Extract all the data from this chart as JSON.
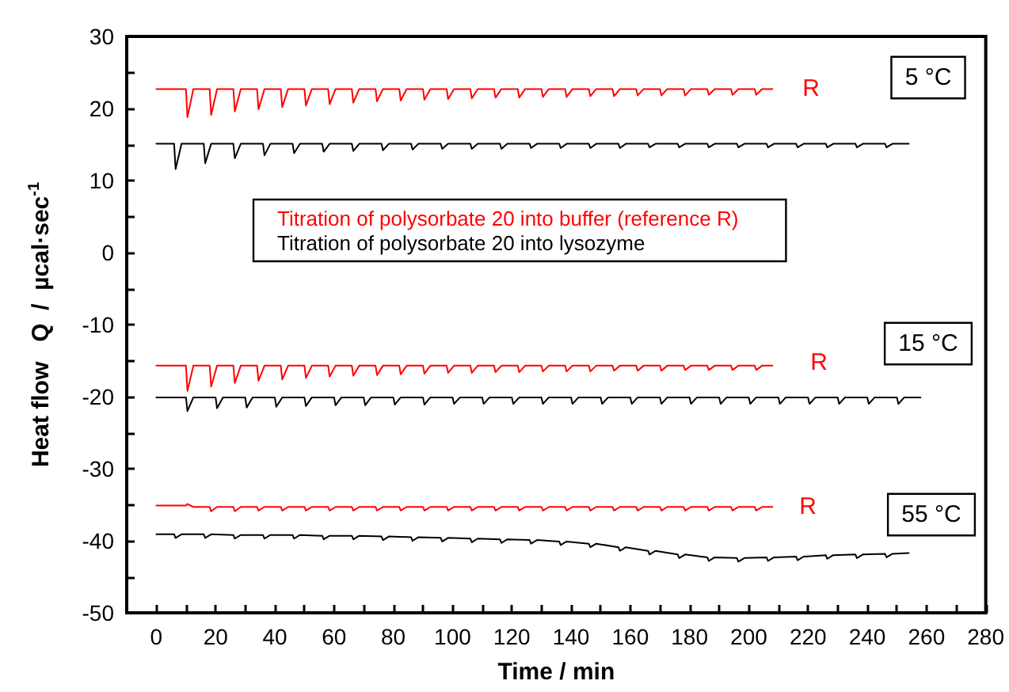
{
  "chart_data": {
    "type": "line",
    "xlabel": "Time / min",
    "ylabel": "Heat flow   Q  /  µcal·sec$^{-1}$",
    "xlim": [
      -10,
      280
    ],
    "ylim": [
      -50,
      30
    ],
    "xticks": [
      0,
      {
        "value": 10,
        "label": null
      },
      20,
      {
        "value": 30,
        "label": null
      },
      40,
      {
        "value": 50,
        "label": null
      },
      60,
      {
        "value": 70,
        "label": null
      },
      80,
      {
        "value": 90,
        "label": null
      },
      100,
      {
        "value": 110,
        "label": null
      },
      120,
      {
        "value": 130,
        "label": null
      },
      140,
      {
        "value": 150,
        "label": null
      },
      160,
      {
        "value": 170,
        "label": null
      },
      180,
      {
        "value": 190,
        "label": null
      },
      200,
      {
        "value": 210,
        "label": null
      },
      220,
      {
        "value": 230,
        "label": null
      },
      240,
      {
        "value": 250,
        "label": null
      },
      260,
      {
        "value": 270,
        "label": null
      },
      280
    ],
    "yticks": [
      -50,
      {
        "value": -45,
        "label": null
      },
      -40,
      {
        "value": -35,
        "label": null
      },
      -30,
      {
        "value": -25,
        "label": null
      },
      -20,
      {
        "value": -15,
        "label": null
      },
      -10,
      {
        "value": -5,
        "label": null
      },
      0,
      {
        "value": 5,
        "label": null
      },
      10,
      {
        "value": 15,
        "label": null
      },
      20,
      {
        "value": 25,
        "label": null
      },
      30
    ],
    "grid": false,
    "legend": "top",
    "marker": "none",
    "line_style": "solid",
    "series": [
      {
        "name": "Titration of polysorbate 20 into buffer (reference R)",
        "color": "#ff0000",
        "x": [
          0,
          10,
          10.5,
          12.5,
          18,
          18.5,
          20.5,
          26,
          26.5,
          28.5,
          34,
          34.5,
          36.5,
          42,
          42.5,
          44.5,
          50,
          50.5,
          52.5,
          58,
          58.5,
          60.5,
          66,
          66.5,
          68.5,
          74,
          74.5,
          76.5,
          82,
          82.5,
          84.5,
          90,
          90.5,
          92.5,
          98,
          98.5,
          100.5,
          106,
          106.5,
          108.5,
          114,
          114.5,
          116.5,
          122,
          122.5,
          124.5,
          130,
          130.5,
          132.5,
          138,
          138.5,
          140.5,
          146,
          146.5,
          148.5,
          154,
          154.5,
          156.5,
          162,
          162.5,
          164.5,
          170,
          170.5,
          172.5,
          178,
          178.5,
          180.5,
          186,
          186.5,
          188.5,
          194,
          194.5,
          196.5,
          202,
          202.5,
          204.5,
          208,
          null,
          0,
          10,
          10.5,
          12.5,
          18,
          18.5,
          20.5,
          26,
          26.5,
          28.5,
          34,
          34.5,
          36.5,
          42,
          42.5,
          44.5,
          50,
          50.5,
          52.5,
          58,
          58.5,
          60.5,
          66,
          66.5,
          68.5,
          74,
          74.5,
          76.5,
          82,
          82.5,
          84.5,
          90,
          90.5,
          92.5,
          98,
          98.5,
          100.5,
          106,
          106.5,
          108.5,
          114,
          114.5,
          116.5,
          122,
          122.5,
          124.5,
          130,
          130.5,
          132.5,
          138,
          138.5,
          140.5,
          146,
          146.5,
          148.5,
          154,
          154.5,
          156.5,
          162,
          162.5,
          164.5,
          170,
          170.5,
          172.5,
          178,
          178.5,
          180.5,
          186,
          186.5,
          188.5,
          194,
          194.5,
          196.5,
          202,
          202.5,
          204.5,
          208,
          null,
          0,
          10,
          10.5,
          12.5,
          18,
          18.5,
          20.5,
          26,
          26.5,
          28.5,
          34,
          34.5,
          36.5,
          42,
          42.5,
          44.5,
          50,
          50.5,
          52.5,
          58,
          58.5,
          60.5,
          66,
          66.5,
          68.5,
          74,
          74.5,
          76.5,
          82,
          82.5,
          84.5,
          90,
          90.5,
          92.5,
          98,
          98.5,
          100.5,
          106,
          106.5,
          108.5,
          114,
          114.5,
          116.5,
          122,
          122.5,
          124.5,
          130,
          130.5,
          132.5,
          138,
          138.5,
          140.5,
          146,
          146.5,
          148.5,
          154,
          154.5,
          156.5,
          162,
          162.5,
          164.5,
          170,
          170.5,
          172.5,
          178,
          178.5,
          180.5,
          186,
          186.5,
          188.5,
          194,
          194.5,
          196.5,
          202,
          202.5,
          204.5,
          208
        ],
        "values": [
          22.7,
          22.7,
          18.8,
          22.7,
          22.7,
          19.1,
          22.7,
          22.7,
          19.6,
          22.7,
          22.7,
          19.9,
          22.7,
          22.7,
          20.2,
          22.7,
          22.7,
          20.4,
          22.7,
          22.7,
          20.6,
          22.7,
          22.7,
          20.8,
          22.7,
          22.7,
          21.0,
          22.7,
          22.7,
          21.1,
          22.7,
          22.7,
          21.2,
          22.7,
          22.7,
          21.3,
          22.7,
          22.7,
          21.4,
          22.7,
          22.7,
          21.5,
          22.7,
          22.7,
          21.5,
          22.7,
          22.7,
          21.6,
          22.7,
          22.7,
          21.6,
          22.7,
          22.7,
          21.7,
          22.7,
          22.7,
          21.7,
          22.7,
          22.7,
          21.8,
          22.7,
          22.7,
          21.8,
          22.7,
          22.7,
          21.8,
          22.7,
          22.7,
          21.9,
          22.7,
          22.7,
          21.9,
          22.7,
          22.7,
          21.9,
          22.7,
          22.7,
          null,
          -15.7,
          -15.7,
          -19.2,
          -15.7,
          -15.7,
          -18.6,
          -15.7,
          -15.7,
          -18.1,
          -15.7,
          -15.7,
          -17.8,
          -15.7,
          -15.7,
          -17.6,
          -15.7,
          -15.7,
          -17.4,
          -15.7,
          -15.7,
          -17.2,
          -15.7,
          -15.7,
          -17.1,
          -15.7,
          -15.7,
          -17.0,
          -15.7,
          -15.7,
          -16.9,
          -15.7,
          -15.7,
          -16.8,
          -15.7,
          -15.7,
          -16.7,
          -15.7,
          -15.7,
          -16.7,
          -15.7,
          -15.7,
          -16.6,
          -15.7,
          -15.7,
          -16.6,
          -15.7,
          -15.7,
          -16.5,
          -15.7,
          -15.7,
          -16.5,
          -15.7,
          -15.7,
          -16.5,
          -15.7,
          -15.7,
          -16.4,
          -15.7,
          -15.7,
          -16.4,
          -15.7,
          -15.7,
          -16.4,
          -15.7,
          -15.7,
          -16.3,
          -15.7,
          -15.7,
          -16.3,
          -15.7,
          -15.7,
          -16.3,
          -15.7,
          -15.7,
          -16.3,
          -15.7,
          -15.7,
          null,
          -35.1,
          -35.1,
          -34.9,
          -35.3,
          -35.3,
          -35.9,
          -35.3,
          -35.3,
          -35.9,
          -35.3,
          -35.3,
          -35.8,
          -35.3,
          -35.3,
          -35.8,
          -35.3,
          -35.3,
          -35.8,
          -35.3,
          -35.3,
          -35.8,
          -35.3,
          -35.3,
          -35.8,
          -35.3,
          -35.3,
          -35.8,
          -35.3,
          -35.3,
          -35.8,
          -35.3,
          -35.3,
          -35.8,
          -35.3,
          -35.3,
          -35.8,
          -35.3,
          -35.3,
          -35.8,
          -35.3,
          -35.3,
          -35.8,
          -35.3,
          -35.3,
          -35.8,
          -35.3,
          -35.3,
          -35.8,
          -35.3,
          -35.3,
          -35.8,
          -35.3,
          -35.3,
          -35.8,
          -35.3,
          -35.3,
          -35.8,
          -35.3,
          -35.3,
          -35.8,
          -35.3,
          -35.3,
          -35.8,
          -35.3,
          -35.3,
          -35.8,
          -35.3,
          -35.3,
          -35.8,
          -35.3,
          -35.3,
          -35.8,
          -35.3,
          -35.3,
          -35.8,
          -35.3,
          -35.3
        ]
      },
      {
        "name": "Titration of polysorbate 20 into lysozyme",
        "color": "#000000",
        "x": [
          0,
          6,
          6.5,
          8.5,
          16,
          16.5,
          18.5,
          26,
          26.5,
          28.5,
          36,
          36.5,
          38.5,
          46,
          46.5,
          48.5,
          56,
          56.5,
          58.5,
          66,
          66.5,
          68.5,
          76,
          76.5,
          78.5,
          86,
          86.5,
          88.5,
          96,
          96.5,
          98.5,
          106,
          106.5,
          108.5,
          116,
          116.5,
          118.5,
          126,
          126.5,
          128.5,
          136,
          136.5,
          138.5,
          146,
          146.5,
          148.5,
          156,
          156.5,
          158.5,
          166,
          166.5,
          168.5,
          176,
          176.5,
          178.5,
          186,
          186.5,
          188.5,
          196,
          196.5,
          198.5,
          206,
          206.5,
          208.5,
          216,
          216.5,
          218.5,
          226,
          226.5,
          228.5,
          236,
          236.5,
          238.5,
          246,
          246.5,
          248.5,
          254,
          null,
          0,
          10,
          10.5,
          12.5,
          20,
          20.5,
          22.5,
          30,
          30.5,
          32.5,
          40,
          40.5,
          42.5,
          50,
          50.5,
          52.5,
          60,
          60.5,
          62.5,
          70,
          70.5,
          72.5,
          80,
          80.5,
          82.5,
          90,
          90.5,
          92.5,
          100,
          100.5,
          102.5,
          110,
          110.5,
          112.5,
          120,
          120.5,
          122.5,
          130,
          130.5,
          132.5,
          140,
          140.5,
          142.5,
          150,
          150.5,
          152.5,
          160,
          160.5,
          162.5,
          170,
          170.5,
          172.5,
          180,
          180.5,
          182.5,
          190,
          190.5,
          192.5,
          200,
          200.5,
          202.5,
          210,
          210.5,
          212.5,
          220,
          220.5,
          222.5,
          230,
          230.5,
          232.5,
          240,
          240.5,
          242.5,
          250,
          250.5,
          252.5,
          258,
          null,
          0,
          6,
          6.5,
          8.5,
          16,
          16.5,
          18.5,
          26,
          26.5,
          28.5,
          36,
          36.5,
          38.5,
          46,
          46.5,
          48.5,
          56,
          56.5,
          58.5,
          66,
          66.5,
          68.5,
          76,
          76.5,
          78.5,
          86,
          86.5,
          88.5,
          96,
          96.5,
          98.5,
          106,
          106.5,
          108.5,
          116,
          116.5,
          118.5,
          126,
          126.5,
          128.5,
          136,
          136.5,
          138.5,
          146,
          146.5,
          148.5,
          156,
          156.5,
          158.5,
          166,
          166.5,
          168.5,
          176,
          176.5,
          178.5,
          186,
          186.5,
          188.5,
          196,
          196.5,
          198.5,
          206,
          206.5,
          208.5,
          216,
          216.5,
          218.5,
          226,
          226.5,
          228.5,
          236,
          236.5,
          238.5,
          246,
          246.5,
          248.5,
          254
        ],
        "values": [
          15.1,
          15.1,
          11.6,
          15.1,
          15.1,
          12.4,
          15.1,
          15.1,
          13.1,
          15.1,
          15.1,
          13.5,
          15.1,
          15.1,
          13.8,
          15.1,
          15.1,
          14.0,
          15.1,
          15.1,
          14.1,
          15.1,
          15.1,
          14.2,
          15.1,
          15.1,
          14.3,
          15.1,
          15.1,
          14.4,
          15.1,
          15.1,
          14.4,
          15.1,
          15.1,
          14.4,
          15.1,
          15.1,
          14.5,
          15.1,
          15.1,
          14.5,
          15.1,
          15.1,
          14.5,
          15.1,
          15.1,
          14.5,
          15.1,
          15.1,
          14.6,
          15.1,
          15.1,
          14.6,
          15.1,
          15.1,
          14.6,
          15.1,
          15.1,
          14.6,
          15.1,
          15.1,
          14.6,
          15.1,
          15.1,
          14.6,
          15.1,
          15.1,
          14.6,
          15.1,
          15.1,
          14.6,
          15.1,
          15.1,
          14.6,
          15.1,
          15.1,
          null,
          -20.1,
          -20.1,
          -22.0,
          -20.1,
          -20.1,
          -21.6,
          -20.1,
          -20.1,
          -21.5,
          -20.1,
          -20.1,
          -21.4,
          -20.1,
          -20.1,
          -21.3,
          -20.1,
          -20.1,
          -21.2,
          -20.1,
          -20.1,
          -21.2,
          -20.1,
          -20.1,
          -21.1,
          -20.1,
          -20.1,
          -21.1,
          -20.1,
          -20.1,
          -21.0,
          -20.1,
          -20.1,
          -21.0,
          -20.1,
          -20.1,
          -21.0,
          -20.1,
          -20.1,
          -21.0,
          -20.1,
          -20.1,
          -21.0,
          -20.1,
          -20.1,
          -21.0,
          -20.1,
          -20.1,
          -21.0,
          -20.1,
          -20.1,
          -21.0,
          -20.1,
          -20.1,
          -21.0,
          -20.1,
          -20.1,
          -21.0,
          -20.1,
          -20.1,
          -21.0,
          -20.1,
          -20.1,
          -21.0,
          -20.1,
          -20.1,
          -21.0,
          -20.1,
          -20.1,
          -21.0,
          -20.1,
          -20.1,
          -21.0,
          -20.1,
          -20.1,
          -21.0,
          -20.1,
          -20.1,
          null,
          -39.1,
          -39.1,
          -39.6,
          -39.1,
          -39.1,
          -39.6,
          -39.1,
          -39.2,
          -39.7,
          -39.2,
          -39.2,
          -39.7,
          -39.2,
          -39.2,
          -39.7,
          -39.2,
          -39.3,
          -39.8,
          -39.3,
          -39.3,
          -39.8,
          -39.3,
          -39.4,
          -39.9,
          -39.4,
          -39.5,
          -40.0,
          -39.5,
          -39.6,
          -40.1,
          -39.6,
          -39.7,
          -40.2,
          -39.7,
          -39.8,
          -40.3,
          -39.8,
          -39.9,
          -40.4,
          -39.9,
          -40.1,
          -40.6,
          -40.1,
          -40.4,
          -40.9,
          -40.4,
          -40.9,
          -41.4,
          -40.9,
          -41.4,
          -41.9,
          -41.4,
          -41.9,
          -42.4,
          -41.9,
          -42.3,
          -42.8,
          -42.3,
          -42.4,
          -42.9,
          -42.4,
          -42.3,
          -42.8,
          -42.3,
          -42.2,
          -42.7,
          -42.2,
          -42.0,
          -42.5,
          -42.0,
          -41.9,
          -42.4,
          -41.9,
          -41.8,
          -42.3,
          -41.8,
          -41.7
        ]
      }
    ],
    "annotations": [
      "R",
      "R",
      "R",
      "5 °C",
      "15 °C",
      "55 °C"
    ]
  }
}
